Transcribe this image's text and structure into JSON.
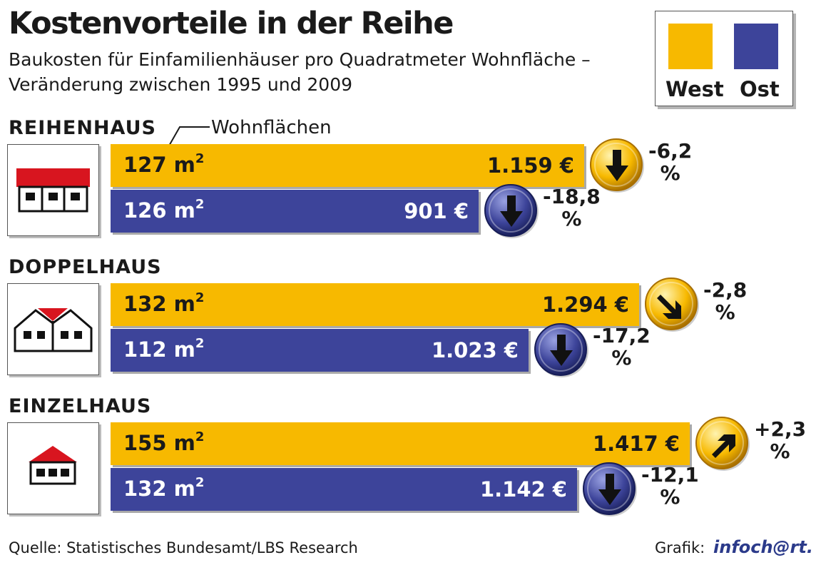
{
  "chart_data": {
    "type": "bar",
    "title": "Kostenvorteile in der Reihe",
    "subtitle": [
      "Baukosten für Einfamilienhäuser pro Quadratmeter Wohnfläche –",
      "Veränderung zwischen 1995 und 2009"
    ],
    "legend": {
      "placement": "top-right",
      "entries": [
        {
          "name": "West",
          "color": "#f7b900"
        },
        {
          "name": "Ost",
          "color": "#3d449a"
        }
      ]
    },
    "annotation": "Wohnflächen",
    "categories": [
      "REIHENHAUS",
      "DOPPELHAUS",
      "EINZELHAUS"
    ],
    "area_unit": "m",
    "area_exp": "2",
    "series": [
      {
        "name": "West",
        "values": [
          1159,
          1294,
          1417
        ],
        "value_labels": [
          "1.159 €",
          "1.294 €",
          "1.417 €"
        ],
        "areas": [
          "127",
          "132",
          "155"
        ],
        "change_labels": [
          "-6,2",
          "-2,8",
          "+2,3"
        ],
        "change_values": [
          -6.2,
          -2.8,
          2.3
        ]
      },
      {
        "name": "Ost",
        "values": [
          901,
          1023,
          1142
        ],
        "value_labels": [
          "901 €",
          "1.023 €",
          "1.142 €"
        ],
        "areas": [
          "126",
          "112",
          "132"
        ],
        "change_labels": [
          "-18,8",
          "-17,2",
          "-12,1"
        ],
        "change_values": [
          -18.8,
          -17.2,
          -12.1
        ]
      }
    ],
    "percent_sign": "%",
    "xlim": [
      0,
      1417
    ],
    "grid": false
  },
  "colors": {
    "west": "#f7b900",
    "ost": "#3d449a",
    "roof": "#d8151f"
  },
  "icons": [
    "reihenhaus-icon",
    "doppelhaus-icon",
    "einzelhaus-icon",
    "down-arrow-icon",
    "down-right-arrow-icon",
    "up-right-arrow-icon"
  ],
  "footer": {
    "source": "Quelle: Statistisches Bundesamt/LBS Research",
    "grafik_label": "Grafik:",
    "grafik_logo": "infoch@rt."
  }
}
